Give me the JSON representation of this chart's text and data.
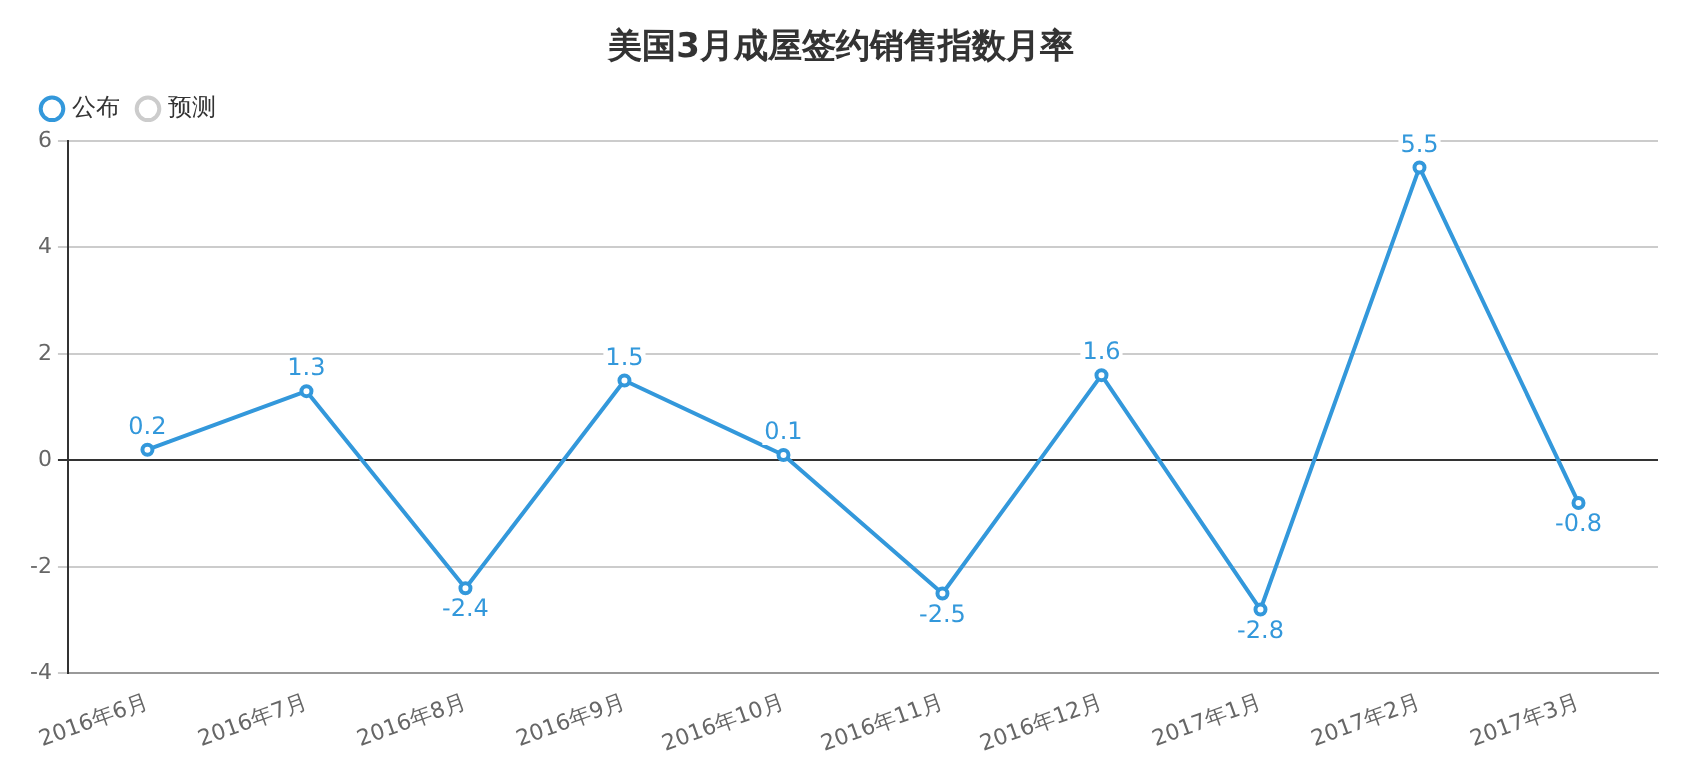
{
  "chart_data": {
    "type": "line",
    "title": "美国3月成屋签约销售指数月率",
    "categories": [
      "2016年6月",
      "2016年7月",
      "2016年8月",
      "2016年9月",
      "2016年10月",
      "2016年11月",
      "2016年12月",
      "2017年1月",
      "2017年2月",
      "2017年3月"
    ],
    "series": [
      {
        "name": "公布",
        "color": "#3398db",
        "values": [
          0.2,
          1.3,
          -2.4,
          1.5,
          0.1,
          -2.5,
          1.6,
          -2.8,
          5.5,
          -0.8
        ]
      },
      {
        "name": "预测",
        "color": "#cccccc",
        "values": [
          null,
          null,
          null,
          null,
          null,
          null,
          null,
          null,
          null,
          null
        ]
      }
    ],
    "ylim": [
      -4,
      6
    ],
    "yticks": [
      -4,
      -2,
      0,
      2,
      4,
      6
    ],
    "grid": "y",
    "legend": "top left",
    "marker": "circle",
    "line_style": "solid",
    "data_labels": true
  }
}
